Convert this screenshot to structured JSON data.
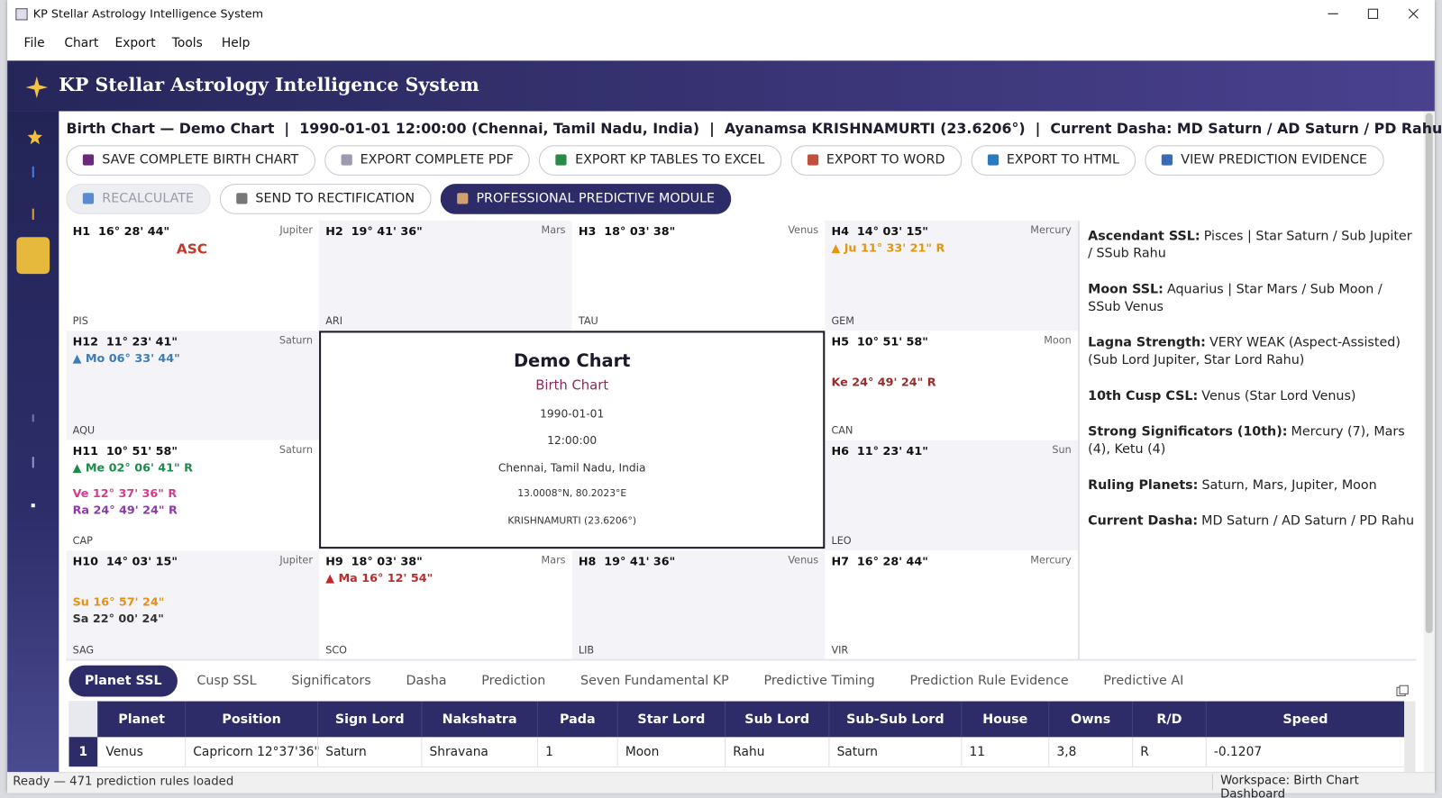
{
  "window": {
    "title": "KP Stellar Astrology Intelligence System"
  },
  "menu": [
    "File",
    "Chart",
    "Export",
    "Tools",
    "Help"
  ],
  "header": {
    "title": "KP Stellar Astrology Intelligence System"
  },
  "info_line": "Birth Chart — Demo Chart  |  1990-01-01 12:00:00 (Chennai, Tamil Nadu, India)  |  Ayanamsa KRISHNAMURTI (23.6206°)  |  Current Dasha: MD Saturn / AD Saturn / PD Rahu",
  "button_rows": [
    [
      "SAVE COMPLETE BIRTH CHART",
      "EXPORT COMPLETE PDF",
      "EXPORT KP TABLES TO EXCEL",
      "EXPORT TO WORD",
      "EXPORT TO HTML",
      "VIEW PREDICTION EVIDENCE"
    ],
    [
      "RECALCULATE",
      "SEND TO RECTIFICATION",
      "PROFESSIONAL PREDICTIVE MODULE"
    ]
  ],
  "chart": {
    "asc_label": "ASC",
    "houses": [
      {
        "label": "H1  16° 28' 44\"",
        "lord": "Jupiter",
        "sign": "PIS",
        "planets": []
      },
      {
        "label": "H2  19° 41' 36\"",
        "lord": "Mars",
        "sign": "ARI",
        "planets": []
      },
      {
        "label": "H3  18° 03' 38\"",
        "lord": "Venus",
        "sign": "TAU",
        "planets": []
      },
      {
        "label": "H4  14° 03' 15\"",
        "lord": "Mercury",
        "sign": "GEM",
        "planets": [
          {
            "text": "▲ Ju 11° 33' 21\" R",
            "color": "#e0960f"
          }
        ]
      },
      {
        "label": "H12  11° 23' 41\"",
        "lord": "Saturn",
        "sign": "AQU",
        "planets": [
          {
            "text": "▲ Mo 06° 33' 44\"",
            "color": "#3d7cb8"
          }
        ]
      },
      {
        "label": "H5  10° 51' 58\"",
        "lord": "Moon",
        "sign": "CAN",
        "planets": [
          {
            "text": "Ke 24° 49' 24\" R",
            "color": "#9a2b2b"
          }
        ]
      },
      {
        "label": "H11  10° 51' 58\"",
        "lord": "Saturn",
        "sign": "CAP",
        "planets": [
          {
            "text": "▲ Me 02° 06' 41\" R",
            "color": "#1f8a4c"
          },
          {
            "text": "Ve 12° 37' 36\" R",
            "color": "#d63c8c"
          },
          {
            "text": "Ra 24° 49' 24\" R",
            "color": "#8b3aa8"
          }
        ]
      },
      {
        "label": "H6  11° 23' 41\"",
        "lord": "Sun",
        "sign": "LEO",
        "planets": []
      },
      {
        "label": "H10  14° 03' 15\"",
        "lord": "Jupiter",
        "sign": "SAG",
        "planets": [
          {
            "text": "Su 16° 57' 24\"",
            "color": "#e8900f"
          },
          {
            "text": "Sa 22° 00' 24\"",
            "color": "#333333"
          }
        ]
      },
      {
        "label": "H9  18° 03' 38\"",
        "lord": "Mars",
        "sign": "SCO",
        "planets": [
          {
            "text": "▲ Ma 16° 12' 54\"",
            "color": "#c0292b"
          }
        ]
      },
      {
        "label": "H8  19° 41' 36\"",
        "lord": "Venus",
        "sign": "LIB",
        "planets": []
      },
      {
        "label": "H7  16° 28' 44\"",
        "lord": "Mercury",
        "sign": "VIR",
        "planets": []
      }
    ],
    "center": {
      "title": "Demo Chart",
      "subtitle": "Birth Chart",
      "lines": [
        "1990-01-01",
        "12:00:00",
        "Chennai, Tamil Nadu, India",
        "13.0008°N, 80.2023°E",
        "KRISHNAMURTI (23.6206°)"
      ]
    }
  },
  "summary": [
    {
      "label": "Ascendant SSL:",
      "text": "Pisces | Star Saturn / Sub Jupiter / SSub Rahu"
    },
    {
      "label": "Moon SSL:",
      "text": "Aquarius | Star Mars / Sub Moon / SSub Venus"
    },
    {
      "label": "Lagna Strength:",
      "text": "VERY WEAK (Aspect-Assisted) (Sub Lord Jupiter, Star Lord Rahu)"
    },
    {
      "label": "10th Cusp CSL:",
      "text": "Venus (Star Lord Venus)"
    },
    {
      "label": "Strong Significators (10th):",
      "text": "Mercury (7), Mars (4), Ketu (4)"
    },
    {
      "label": "Ruling Planets:",
      "text": "Saturn, Mars, Jupiter, Moon"
    },
    {
      "label": "Current Dasha:",
      "text": "MD Saturn / AD Saturn / PD Rahu"
    }
  ],
  "tabs": [
    "Planet SSL",
    "Cusp SSL",
    "Significators",
    "Dasha",
    "Prediction",
    "Seven Fundamental KP",
    "Predictive Timing",
    "Prediction Rule Evidence",
    "Predictive AI"
  ],
  "table": {
    "columns": [
      "Planet",
      "Position",
      "Sign Lord",
      "Nakshatra",
      "Pada",
      "Star Lord",
      "Sub Lord",
      "Sub-Sub Lord",
      "House",
      "Owns",
      "R/D",
      "Speed"
    ],
    "rows": [
      {
        "index": "1",
        "cells": [
          "Venus",
          "Capricorn 12°37'36\"",
          "Saturn",
          "Shravana",
          "1",
          "Moon",
          "Rahu",
          "Saturn",
          "11",
          "3,8",
          "R",
          "-0.1207"
        ]
      }
    ]
  },
  "status": {
    "left": "Ready — 471 prediction rules loaded",
    "right": "Workspace: Birth Chart Dashboard"
  }
}
